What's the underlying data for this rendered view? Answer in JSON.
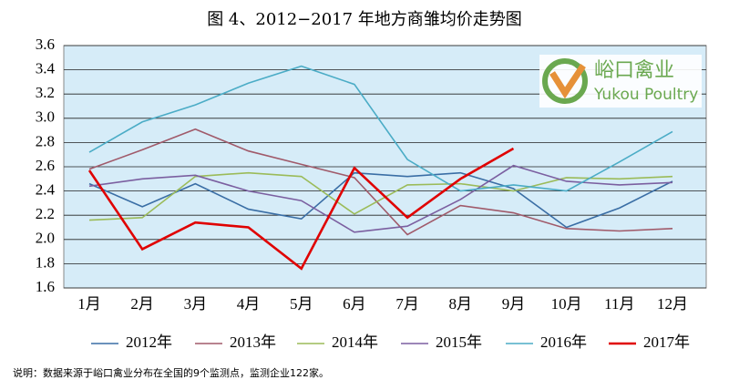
{
  "chart_data": {
    "type": "line",
    "title": "图 4、2012−2017 年地方商雏均价走势图",
    "note": "说明：数据来源于峪口禽业分布在全国的9个监测点，监测企业122家。",
    "logo": {
      "name": "峪口禽业",
      "english": "Yukou Poultry"
    },
    "categories": [
      "1月",
      "2月",
      "3月",
      "4月",
      "5月",
      "6月",
      "7月",
      "8月",
      "9月",
      "10月",
      "11月",
      "12月"
    ],
    "series": [
      {
        "name": "2012年",
        "color": "#3a6ea5",
        "values": [
          2.46,
          2.27,
          2.46,
          2.25,
          2.17,
          2.55,
          2.52,
          2.55,
          2.42,
          2.1,
          2.26,
          2.48
        ]
      },
      {
        "name": "2013年",
        "color": "#a05a6a",
        "values": [
          2.58,
          2.74,
          2.91,
          2.73,
          2.62,
          2.51,
          2.04,
          2.28,
          2.22,
          2.09,
          2.07,
          2.09
        ]
      },
      {
        "name": "2014年",
        "color": "#9bbb59",
        "values": [
          2.16,
          2.18,
          2.52,
          2.55,
          2.52,
          2.21,
          2.45,
          2.46,
          2.4,
          2.51,
          2.5,
          2.52
        ]
      },
      {
        "name": "2015年",
        "color": "#7b5fa0",
        "values": [
          2.44,
          2.5,
          2.53,
          2.4,
          2.32,
          2.06,
          2.11,
          2.33,
          2.61,
          2.48,
          2.45,
          2.47
        ]
      },
      {
        "name": "2016年",
        "color": "#4bacc6",
        "values": [
          2.72,
          2.97,
          3.11,
          3.29,
          3.43,
          3.28,
          2.66,
          2.4,
          2.45,
          2.4,
          2.64,
          2.89
        ]
      },
      {
        "name": "2017年",
        "color": "#e00000",
        "values": [
          2.57,
          1.92,
          2.14,
          2.1,
          1.76,
          2.59,
          2.18,
          2.5,
          2.75,
          null,
          null,
          null
        ]
      }
    ],
    "ylim": [
      1.6,
      3.6
    ],
    "yticks": [
      1.6,
      1.8,
      {
        "value": 2,
        "label": "2.0"
      },
      2.2,
      2.4,
      2.6,
      2.8,
      {
        "value": 3,
        "label": "3.0"
      },
      3.2,
      3.4,
      3.6
    ],
    "grid": true
  }
}
